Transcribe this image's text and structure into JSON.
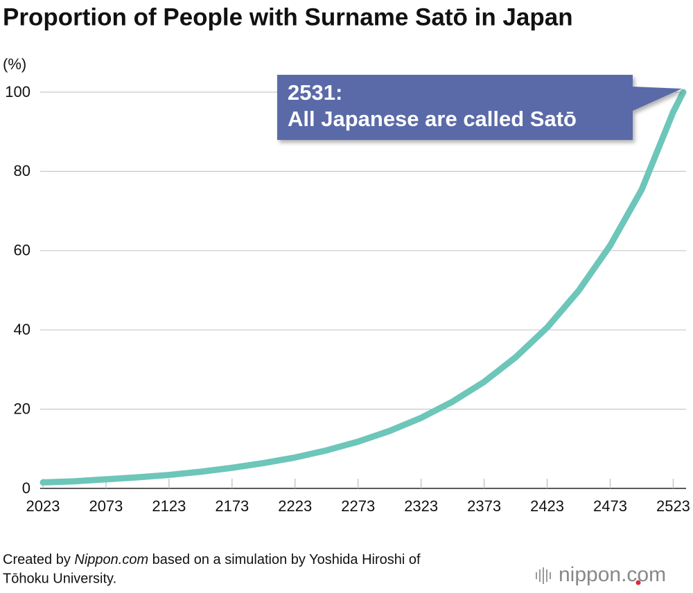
{
  "chart_data": {
    "type": "line",
    "title": "Proportion of People with Surname Satō in Japan",
    "y_label": "(%)",
    "x": [
      2023,
      2048,
      2073,
      2098,
      2123,
      2148,
      2173,
      2198,
      2223,
      2248,
      2273,
      2298,
      2323,
      2348,
      2373,
      2398,
      2423,
      2448,
      2473,
      2498,
      2523,
      2531
    ],
    "series": [
      {
        "name": "Satō",
        "color": "#6cc6b9",
        "values": [
          1.5,
          1.8,
          2.3,
          2.8,
          3.4,
          4.2,
          5.2,
          6.4,
          7.8,
          9.6,
          11.8,
          14.5,
          17.8,
          21.9,
          26.9,
          33.1,
          40.6,
          49.9,
          61.3,
          75.4,
          95,
          100
        ]
      }
    ],
    "xlim": [
      2023,
      2531
    ],
    "xticks": [
      2023,
      2073,
      2123,
      2173,
      2223,
      2273,
      2323,
      2373,
      2423,
      2473,
      2523
    ],
    "ylim": [
      0,
      100
    ],
    "yticks": [
      0,
      20,
      40,
      60,
      80,
      100
    ],
    "grid": true,
    "annotation": [
      "2531:",
      "All Japanese are called Satō"
    ],
    "source": [
      "Created by ",
      "Nippon.com",
      " based on a simulation by Yoshida Hiroshi of",
      "Tōhoku University."
    ],
    "logo": [
      "nippon",
      ".com"
    ]
  }
}
